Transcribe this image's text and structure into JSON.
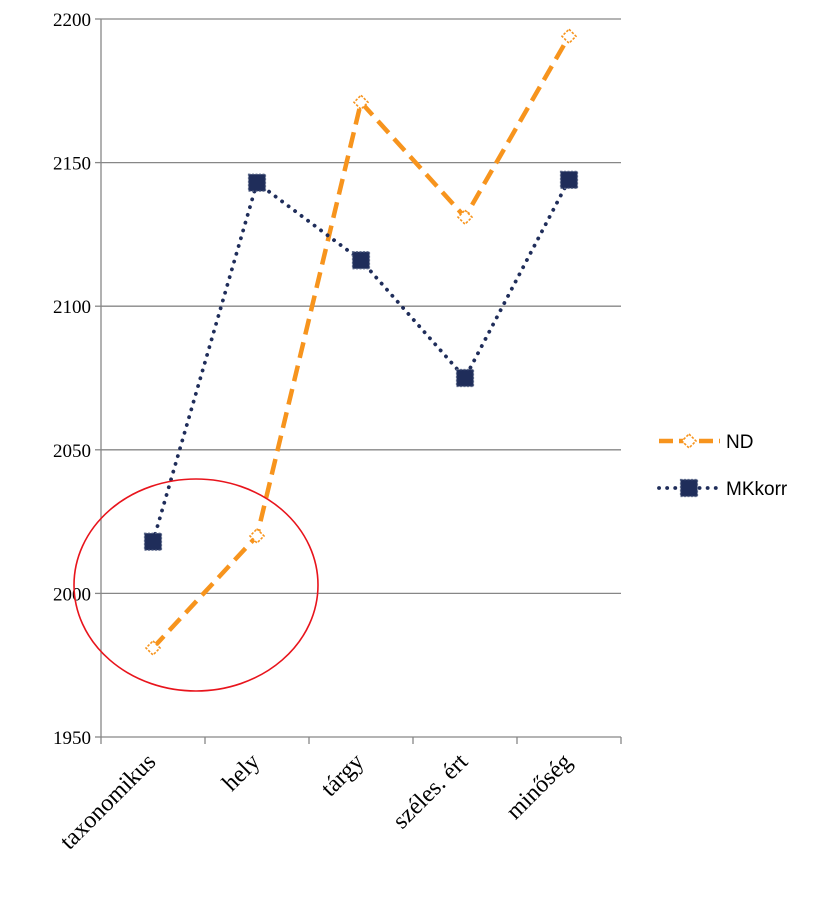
{
  "chart_data": {
    "type": "line",
    "categories": [
      "taxonomikus",
      "hely",
      "tárgy",
      "széles. ért",
      "minőség"
    ],
    "ylim": [
      1950,
      2200
    ],
    "yticks": [
      1950,
      2000,
      2050,
      2100,
      2150,
      2200
    ],
    "grid": true,
    "legend": "right",
    "series": [
      {
        "name": "ND",
        "values": [
          1981,
          2020,
          2171,
          2131,
          2194
        ],
        "color": "#f7941d",
        "style": "dashed",
        "marker": "open-diamond"
      },
      {
        "name": "MKkorr",
        "values": [
          2018,
          2143,
          2116,
          2075,
          2144
        ],
        "color": "#1f2d5a",
        "style": "dotted",
        "marker": "filled-square"
      }
    ],
    "annotations": [
      {
        "shape": "ellipse",
        "color": "#e8141c",
        "encloses": [
          "taxonomikus",
          "hely"
        ]
      }
    ]
  }
}
